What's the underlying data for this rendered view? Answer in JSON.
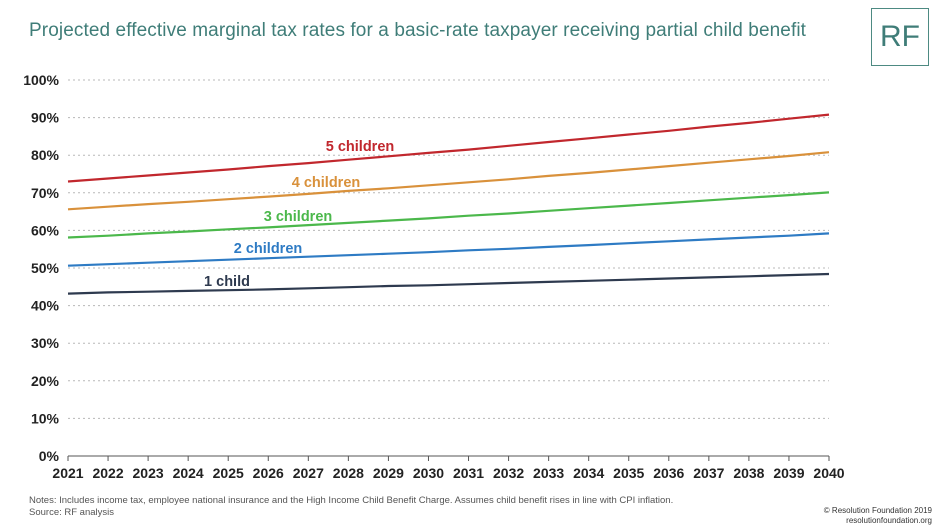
{
  "title": "Projected effective marginal tax rates for a basic-rate taxpayer receiving partial child benefit",
  "logo_text": "RF",
  "notes": {
    "line1": "Notes: Includes income tax, employee national insurance and the High Income Child Benefit Charge. Assumes child benefit rises in line with CPI inflation.",
    "line2": "Source: RF analysis"
  },
  "copyright": {
    "line1": "© Resolution Foundation 2019",
    "line2": "resolutionfoundation.org"
  },
  "colors": {
    "title": "#3f7d78",
    "grid": "#b8b8b8",
    "axis": "#555555"
  },
  "chart_data": {
    "type": "line",
    "title": "Projected effective marginal tax rates for a basic-rate taxpayer receiving partial child benefit",
    "xlabel": "",
    "ylabel": "",
    "x": [
      2021,
      2022,
      2023,
      2024,
      2025,
      2026,
      2027,
      2028,
      2029,
      2030,
      2031,
      2032,
      2033,
      2034,
      2035,
      2036,
      2037,
      2038,
      2039,
      2040
    ],
    "ylim": [
      0,
      100
    ],
    "yticks": [
      0,
      10,
      20,
      30,
      40,
      50,
      60,
      70,
      80,
      90,
      100
    ],
    "ytick_labels": [
      "0%",
      "10%",
      "20%",
      "30%",
      "40%",
      "50%",
      "60%",
      "70%",
      "80%",
      "90%",
      "100%"
    ],
    "grid": true,
    "grid_style": "dotted",
    "series": [
      {
        "name": "1 child",
        "color": "#2e3a4f",
        "values": [
          43.2,
          43.5,
          43.7,
          43.9,
          44.1,
          44.3,
          44.6,
          44.9,
          45.2,
          45.4,
          45.7,
          46.0,
          46.3,
          46.6,
          46.9,
          47.2,
          47.5,
          47.8,
          48.1,
          48.4
        ]
      },
      {
        "name": "2 children",
        "color": "#2e7bc4",
        "values": [
          50.6,
          51.0,
          51.4,
          51.8,
          52.2,
          52.6,
          53.0,
          53.4,
          53.8,
          54.2,
          54.7,
          55.1,
          55.6,
          56.1,
          56.6,
          57.1,
          57.6,
          58.1,
          58.6,
          59.2
        ]
      },
      {
        "name": "3 children",
        "color": "#4bb84b",
        "values": [
          58.1,
          58.6,
          59.2,
          59.7,
          60.3,
          60.8,
          61.4,
          62.0,
          62.6,
          63.2,
          63.9,
          64.5,
          65.2,
          65.9,
          66.6,
          67.3,
          68.0,
          68.7,
          69.4,
          70.1
        ]
      },
      {
        "name": "4 children",
        "color": "#d9913b",
        "values": [
          65.6,
          66.3,
          67.0,
          67.6,
          68.3,
          69.0,
          69.7,
          70.5,
          71.2,
          72.0,
          72.8,
          73.6,
          74.5,
          75.3,
          76.2,
          77.1,
          78.0,
          78.9,
          79.8,
          80.8
        ]
      },
      {
        "name": "5 children",
        "color": "#c1272d",
        "values": [
          73.0,
          73.8,
          74.6,
          75.4,
          76.2,
          77.1,
          77.9,
          78.8,
          79.7,
          80.6,
          81.5,
          82.5,
          83.5,
          84.5,
          85.5,
          86.5,
          87.6,
          88.6,
          89.7,
          90.8
        ]
      }
    ],
    "annotations": [
      "5 children",
      "4 children",
      "3 children",
      "2 children",
      "1 child"
    ]
  }
}
